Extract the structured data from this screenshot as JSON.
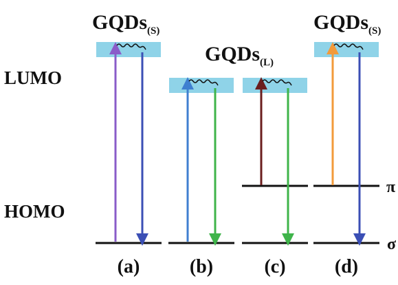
{
  "labels": {
    "lumo": "LUMO",
    "homo": "HOMO",
    "pi_state": "π",
    "sigma_state": "σ"
  },
  "panels": [
    {
      "id": "a",
      "label": "(a)",
      "title_main": "GQDs",
      "title_sub": "(S)"
    },
    {
      "id": "b",
      "label": "(b)",
      "title_main": "",
      "title_sub": ""
    },
    {
      "id": "c",
      "label": "(c)",
      "title_main": "",
      "title_sub": ""
    },
    {
      "id": "d",
      "label": "(d)",
      "title_main": "GQDs",
      "title_sub": "(S)"
    }
  ],
  "shared_title": {
    "title_main": "GQDs",
    "title_sub": "(L)"
  },
  "colors": {
    "band": "#8fd3e8",
    "level_line": "#111111",
    "violet": "#8a5cc9",
    "blue_emission": "#3b4fb5",
    "blue_absorption": "#3f7fd0",
    "green": "#3fb44a",
    "dark_red": "#6b1e1e",
    "orange": "#f29a3a"
  }
}
